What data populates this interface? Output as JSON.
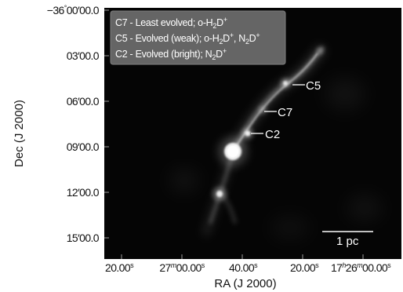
{
  "image": {
    "dec_label": "Dec (J 2000)",
    "ra_label": "RA (J 2000)",
    "dec_ticks": [
      {
        "deg": "−36",
        "deg_sup": "°",
        "rest": "00′00.0"
      },
      {
        "deg": "",
        "deg_sup": "",
        "rest": "03′00.0"
      },
      {
        "deg": "",
        "deg_sup": "",
        "rest": "06′00.0"
      },
      {
        "deg": "",
        "deg_sup": "",
        "rest": "09′00.0"
      },
      {
        "deg": "",
        "deg_sup": "",
        "rest": "12′00.0"
      },
      {
        "deg": "",
        "deg_sup": "",
        "rest": "15′00.0"
      }
    ],
    "ra_ticks": [
      {
        "pre": "20.00",
        "sup": "s"
      },
      {
        "pre": "27",
        "sup_m": "m",
        "mid": "00.00",
        "sup": "s"
      },
      {
        "pre": "40.00",
        "sup": "s"
      },
      {
        "pre": "20.00",
        "sup": "s"
      },
      {
        "pre": "17",
        "sup_h": "h",
        "mid": "26",
        "sup_m": "m",
        "mid2": "00.00",
        "sup": "s"
      }
    ],
    "legend": [
      {
        "pre": "C7 - Least evolved; o-H",
        "sub": "2",
        "post": "D",
        "sup": "+"
      },
      {
        "pre": "C5 - Evolved (weak); o-H",
        "sub": "2",
        "post": "D",
        "sup": "+",
        "extra_pre": ", N",
        "extra_sub": "2",
        "extra_post": "D",
        "extra_sup": "+"
      },
      {
        "pre": "C2 - Evolved (bright); N",
        "sub": "2",
        "post": "D",
        "sup": "+"
      }
    ],
    "sources": [
      "C5",
      "C7",
      "C2"
    ],
    "scale_bar_label": "1 pc",
    "colors": {
      "frame_bg": "#050505",
      "legend_bg": "#6e6e6e",
      "emission": "#ffffff"
    }
  }
}
